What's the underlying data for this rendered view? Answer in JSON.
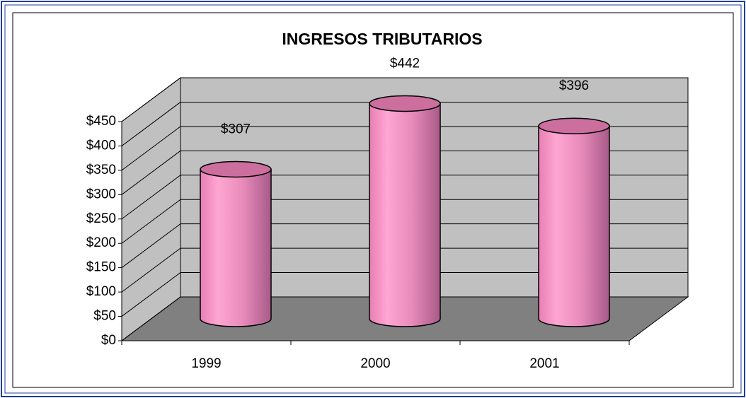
{
  "chart_data": {
    "type": "bar3d-cylinder",
    "title": "INGRESOS TRIBUTARIOS",
    "categories": [
      "1999",
      "2000",
      "2001"
    ],
    "values": [
      307,
      442,
      396
    ],
    "value_labels": [
      "$307",
      "$442",
      "$396"
    ],
    "color": "#ff99cc",
    "ylim": [
      0,
      450
    ],
    "yticks": [
      {
        "value": 0,
        "label": "$0"
      },
      {
        "value": 50,
        "label": "$50"
      },
      {
        "value": 100,
        "label": "$100"
      },
      {
        "value": 150,
        "label": "$150"
      },
      {
        "value": 200,
        "label": "$200"
      },
      {
        "value": 250,
        "label": "$250"
      },
      {
        "value": 300,
        "label": "$300"
      },
      {
        "value": 350,
        "label": "$350"
      },
      {
        "value": 400,
        "label": "$400"
      },
      {
        "value": 450,
        "label": "$450"
      }
    ],
    "grid": true
  }
}
